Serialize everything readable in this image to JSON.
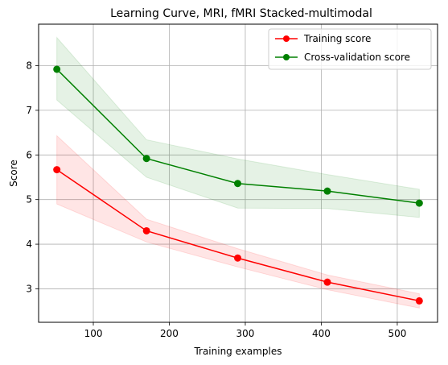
{
  "chart_data": {
    "type": "line",
    "title": "Learning Curve, MRI, fMRI Stacked-multimodal",
    "xlabel": "Training examples",
    "ylabel": "Score",
    "xlim": [
      28,
      553
    ],
    "ylim": [
      2.25,
      8.93
    ],
    "xticks": [
      100,
      200,
      300,
      400,
      500
    ],
    "yticks": [
      3,
      4,
      5,
      6,
      7,
      8
    ],
    "grid": true,
    "legend_position": "upper-right",
    "x": [
      52,
      170,
      290,
      408,
      529
    ],
    "series": [
      {
        "name": "Training score",
        "color": "#ff0000",
        "values": [
          5.67,
          4.3,
          3.69,
          3.15,
          2.73
        ],
        "band_lower": [
          4.9,
          4.05,
          3.49,
          2.98,
          2.57
        ],
        "band_upper": [
          6.43,
          4.56,
          3.9,
          3.31,
          2.89
        ]
      },
      {
        "name": "Cross-validation score",
        "color": "#008000",
        "values": [
          7.92,
          5.92,
          5.36,
          5.19,
          4.92
        ],
        "band_lower": [
          7.23,
          5.5,
          4.81,
          4.8,
          4.6
        ],
        "band_upper": [
          8.63,
          6.34,
          5.91,
          5.56,
          5.23
        ]
      }
    ]
  }
}
